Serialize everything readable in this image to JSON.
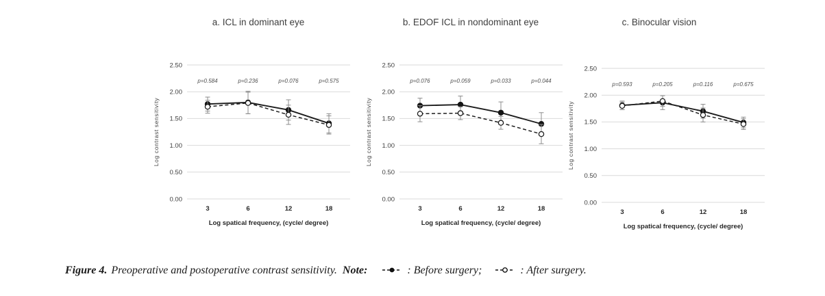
{
  "caption": {
    "figure_label": "Figure 4.",
    "text": "Preoperative and postoperative contrast sensitivity.",
    "note_label": "Note:",
    "legend": [
      {
        "marker": "dashed-line-filled-circle",
        "label": ": Before surgery;"
      },
      {
        "marker": "dashed-line-open-circle",
        "label": ": After surgery."
      }
    ]
  },
  "chart_data": [
    {
      "type": "line",
      "title": "a. ICL in dominant eye",
      "xlabel": "Log spatical frequency, (cycle/ degree)",
      "ylabel": "Log contrast sensitivity",
      "ylim": [
        0,
        2.5
      ],
      "yticks": [
        2.5,
        2.0,
        1.5,
        1.0,
        0.5,
        0.0
      ],
      "grid": true,
      "legend_position": "caption",
      "categories": [
        "3",
        "6",
        "12",
        "18"
      ],
      "p_values": [
        "p=0.584",
        "p=0.236",
        "p=0.076",
        "p=0.575"
      ],
      "series": [
        {
          "name": "Before surgery",
          "style": "solid",
          "marker": "filled",
          "values": [
            1.77,
            1.8,
            1.66,
            1.41
          ],
          "errors": [
            0.13,
            0.21,
            0.19,
            0.18
          ]
        },
        {
          "name": "After surgery",
          "style": "dashed",
          "marker": "open",
          "values": [
            1.72,
            1.79,
            1.57,
            1.38
          ],
          "errors": [
            0.12,
            0.2,
            0.18,
            0.17
          ]
        }
      ]
    },
    {
      "type": "line",
      "title": "b. EDOF ICL in nondominant eye",
      "xlabel": "Log spatical frequency, (cycle/ degree)",
      "ylabel": "Log contrast sensitivity",
      "ylim": [
        0,
        2.5
      ],
      "yticks": [
        2.5,
        2.0,
        1.5,
        1.0,
        0.5,
        0.0
      ],
      "grid": true,
      "legend_position": "caption",
      "categories": [
        "3",
        "6",
        "12",
        "18"
      ],
      "p_values": [
        "p=0.076",
        "p=0.059",
        "p=0.033",
        "p=0.044"
      ],
      "series": [
        {
          "name": "Before surgery",
          "style": "solid",
          "marker": "filled",
          "values": [
            1.74,
            1.76,
            1.61,
            1.4
          ],
          "errors": [
            0.14,
            0.16,
            0.2,
            0.21
          ]
        },
        {
          "name": "After surgery",
          "style": "dashed",
          "marker": "open",
          "values": [
            1.59,
            1.6,
            1.42,
            1.21
          ],
          "errors": [
            0.15,
            0.12,
            0.12,
            0.18
          ]
        }
      ]
    },
    {
      "type": "line",
      "title": "c. Binocular vision",
      "xlabel": "Log spatical frequency, (cycle/ degree)",
      "ylabel": "Log contrast sensitivity",
      "ylim": [
        0,
        2.5
      ],
      "yticks": [
        2.5,
        2.0,
        1.5,
        1.0,
        0.5,
        0.0
      ],
      "grid": true,
      "legend_position": "caption",
      "categories": [
        "3",
        "6",
        "12",
        "18"
      ],
      "p_values": [
        "p=0.593",
        "p=0.205",
        "p=0.116",
        "p=0.675"
      ],
      "series": [
        {
          "name": "Before surgery",
          "style": "solid",
          "marker": "filled",
          "values": [
            1.81,
            1.86,
            1.7,
            1.49
          ],
          "errors": [
            0.08,
            0.13,
            0.13,
            0.1
          ]
        },
        {
          "name": "After surgery",
          "style": "dashed",
          "marker": "open",
          "values": [
            1.8,
            1.89,
            1.63,
            1.46
          ],
          "errors": [
            0.07,
            0.1,
            0.13,
            0.1
          ]
        }
      ]
    }
  ]
}
